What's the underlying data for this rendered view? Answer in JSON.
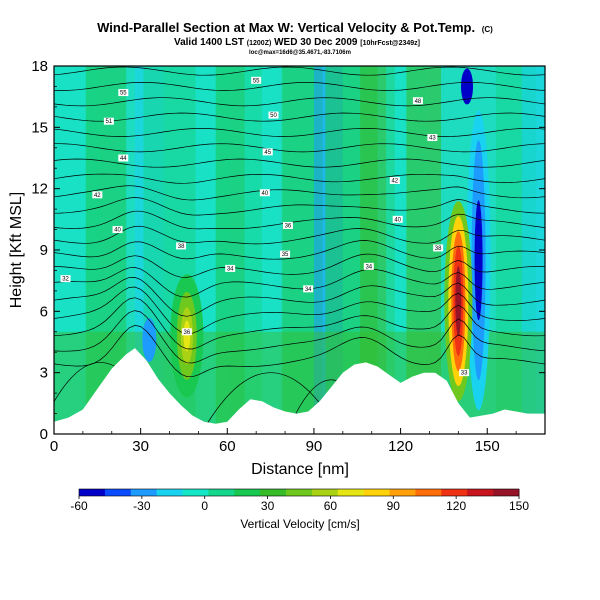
{
  "chart_data": {
    "type": "heatmap",
    "title": "Wind-Parallel Section at Max W: Vertical Velocity & Pot.Temp.",
    "title_mark": "(C)",
    "subtitle_main": "Valid 1400 LST",
    "subtitle_paren1": "(1200Z)",
    "subtitle_date": "WED 30 Dec 2009",
    "subtitle_paren2": "[10hrFcst@2349z]",
    "info_line": "loc@max=16d6@35.4671,-83.7106m",
    "xlabel": "Distance [nm]",
    "ylabel": "Height [Kft MSL]",
    "xlim": [
      0,
      170
    ],
    "ylim": [
      0,
      18
    ],
    "xticks": [
      0,
      30,
      60,
      90,
      120,
      150
    ],
    "yticks": [
      0,
      3,
      6,
      9,
      12,
      15,
      18
    ],
    "colorbar": {
      "label": "Vertical Velocity [cm/s]",
      "range": [
        -60,
        150
      ],
      "ticks": [
        -60,
        -30,
        0,
        30,
        60,
        90,
        120,
        150
      ],
      "colors": [
        "#0000c8",
        "#0a4bff",
        "#1e9bff",
        "#19d2f0",
        "#14e6c8",
        "#14d78c",
        "#19c850",
        "#37bc28",
        "#6ec81e",
        "#aad214",
        "#e6e614",
        "#ffd20a",
        "#ffa00a",
        "#ff6e0a",
        "#f03214",
        "#c8141e",
        "#961428"
      ]
    },
    "terrain": {
      "x": [
        0,
        5,
        10,
        15,
        20,
        25,
        28,
        32,
        36,
        40,
        44,
        48,
        52,
        56,
        60,
        64,
        68,
        72,
        76,
        80,
        84,
        88,
        92,
        96,
        100,
        104,
        108,
        112,
        116,
        120,
        124,
        128,
        132,
        136,
        140,
        144,
        148,
        152,
        156,
        160,
        164,
        170
      ],
      "height_kft": [
        0.6,
        0.8,
        1.2,
        2.2,
        3.2,
        3.9,
        4.2,
        3.6,
        2.7,
        2.0,
        1.4,
        0.9,
        0.6,
        0.5,
        0.6,
        1.2,
        1.7,
        1.6,
        1.3,
        1.1,
        1.0,
        1.1,
        1.6,
        2.3,
        3.0,
        3.4,
        3.5,
        3.3,
        2.9,
        2.5,
        2.8,
        3.0,
        3.0,
        2.6,
        1.5,
        0.8,
        0.9,
        1.0,
        1.2,
        1.1,
        1.0,
        1.0
      ]
    },
    "vertical_velocity_features": [
      {
        "label": "updraft-west",
        "x": 46,
        "y": 4.8,
        "peak": 60
      },
      {
        "label": "updraft-east",
        "x": 140,
        "y": 6.5,
        "peak": 150
      },
      {
        "label": "downdraft-east",
        "x": 147,
        "y": 8.5,
        "peak": -45
      }
    ],
    "theta_contour_labels": [
      {
        "text": "55",
        "x": 24,
        "y": 16.7
      },
      {
        "text": "55",
        "x": 70,
        "y": 17.3
      },
      {
        "text": "51",
        "x": 19,
        "y": 15.3
      },
      {
        "text": "50",
        "x": 76,
        "y": 15.6
      },
      {
        "text": "44",
        "x": 24,
        "y": 13.5
      },
      {
        "text": "45",
        "x": 74,
        "y": 13.8
      },
      {
        "text": "42",
        "x": 15,
        "y": 11.7
      },
      {
        "text": "40",
        "x": 73,
        "y": 11.8
      },
      {
        "text": "40",
        "x": 22,
        "y": 10.0
      },
      {
        "text": "38",
        "x": 44,
        "y": 9.2
      },
      {
        "text": "36",
        "x": 81,
        "y": 10.2
      },
      {
        "text": "35",
        "x": 80,
        "y": 8.8
      },
      {
        "text": "34",
        "x": 61,
        "y": 8.1
      },
      {
        "text": "34",
        "x": 88,
        "y": 7.1
      },
      {
        "text": "32",
        "x": 4,
        "y": 7.6
      },
      {
        "text": "34",
        "x": 109,
        "y": 8.2
      },
      {
        "text": "48",
        "x": 126,
        "y": 16.3
      },
      {
        "text": "43",
        "x": 131,
        "y": 14.5
      },
      {
        "text": "42",
        "x": 118,
        "y": 12.4
      },
      {
        "text": "40",
        "x": 119,
        "y": 10.5
      },
      {
        "text": "38",
        "x": 133,
        "y": 9.1
      },
      {
        "text": "36",
        "x": 46,
        "y": 5.0
      },
      {
        "text": "33",
        "x": 142,
        "y": 3.0
      }
    ]
  }
}
